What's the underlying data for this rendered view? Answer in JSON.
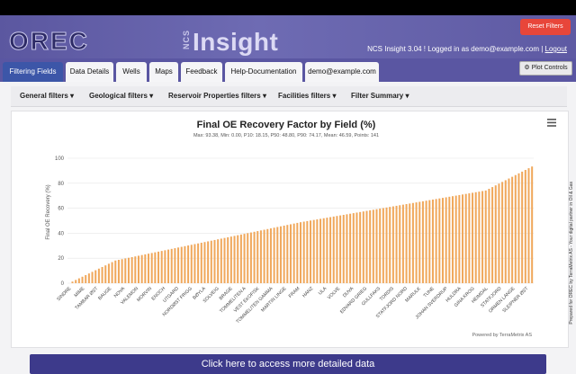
{
  "header": {
    "logo_text": "OREC",
    "ncs_label": "NCS",
    "product": "Insight",
    "reset_label": "Reset Filters",
    "version_text": "NCS Insight 3.04 ! Logged in as demo@example.com | ",
    "logout_label": "Logout"
  },
  "tabs": [
    "Filtering Fields",
    "Data Details",
    "Wells",
    "Maps",
    "Feedback",
    "Help-Documentation",
    "demo@example.com"
  ],
  "plot_controls_label": "Plot Controls",
  "filters": [
    "General filters",
    "Geological filters",
    "Reservoir Properties filters",
    "Facilities filters",
    "Filter Summary"
  ],
  "chart_data": {
    "type": "bar",
    "title": "Final OE Recovery Factor by Field (%)",
    "subtitle": "Max: 93.38, Min: 0.00, P10: 18.15, P50: 48.80, P90: 74.17, Mean: 46.59, Points: 141",
    "xlabel": "",
    "ylabel": "Final OE Recovery (%)",
    "ylim": [
      0,
      100
    ],
    "yticks": [
      0,
      20,
      40,
      60,
      80,
      100
    ],
    "bar_color": "#f0a85c",
    "credits": "Powered by TerraMetrix AS",
    "n_points": 141,
    "min": 0.0,
    "p10": 18.15,
    "p50": 48.8,
    "p90": 74.17,
    "max": 93.38,
    "visible_labels": [
      "SINDRE",
      "MIME",
      "TAMBAR ØST",
      "BAUGE",
      "NOVA",
      "VALEMON",
      "MORVIN",
      "ENOCH",
      "UTGARD",
      "NORDØST FRIGG",
      "BØYLA",
      "SOLVEIG",
      "BRAGE",
      "TOMMELITEN A",
      "VEST EKOFISK",
      "TOMMELITEN GAMMA",
      "MARTIN LINGE",
      "FRAM",
      "HANZ",
      "ULA",
      "VOLVE",
      "DUVA",
      "EDVARD GRIEG",
      "GULLFAKS",
      "TORDIS",
      "STATFJORD NORD",
      "MARULK",
      "TUNE",
      "JOHAN SVERDRUP",
      "HULDRA",
      "GINA KROG",
      "HEIMDAL",
      "STATFJORD",
      "ORMEN LANGE",
      "SLEIPNER ØST"
    ]
  },
  "cta_label": "Click here to access more detailed data",
  "side_note": "Prepared for OREC by TerraMetrix AS - Your digital partner in Oil & Gas"
}
